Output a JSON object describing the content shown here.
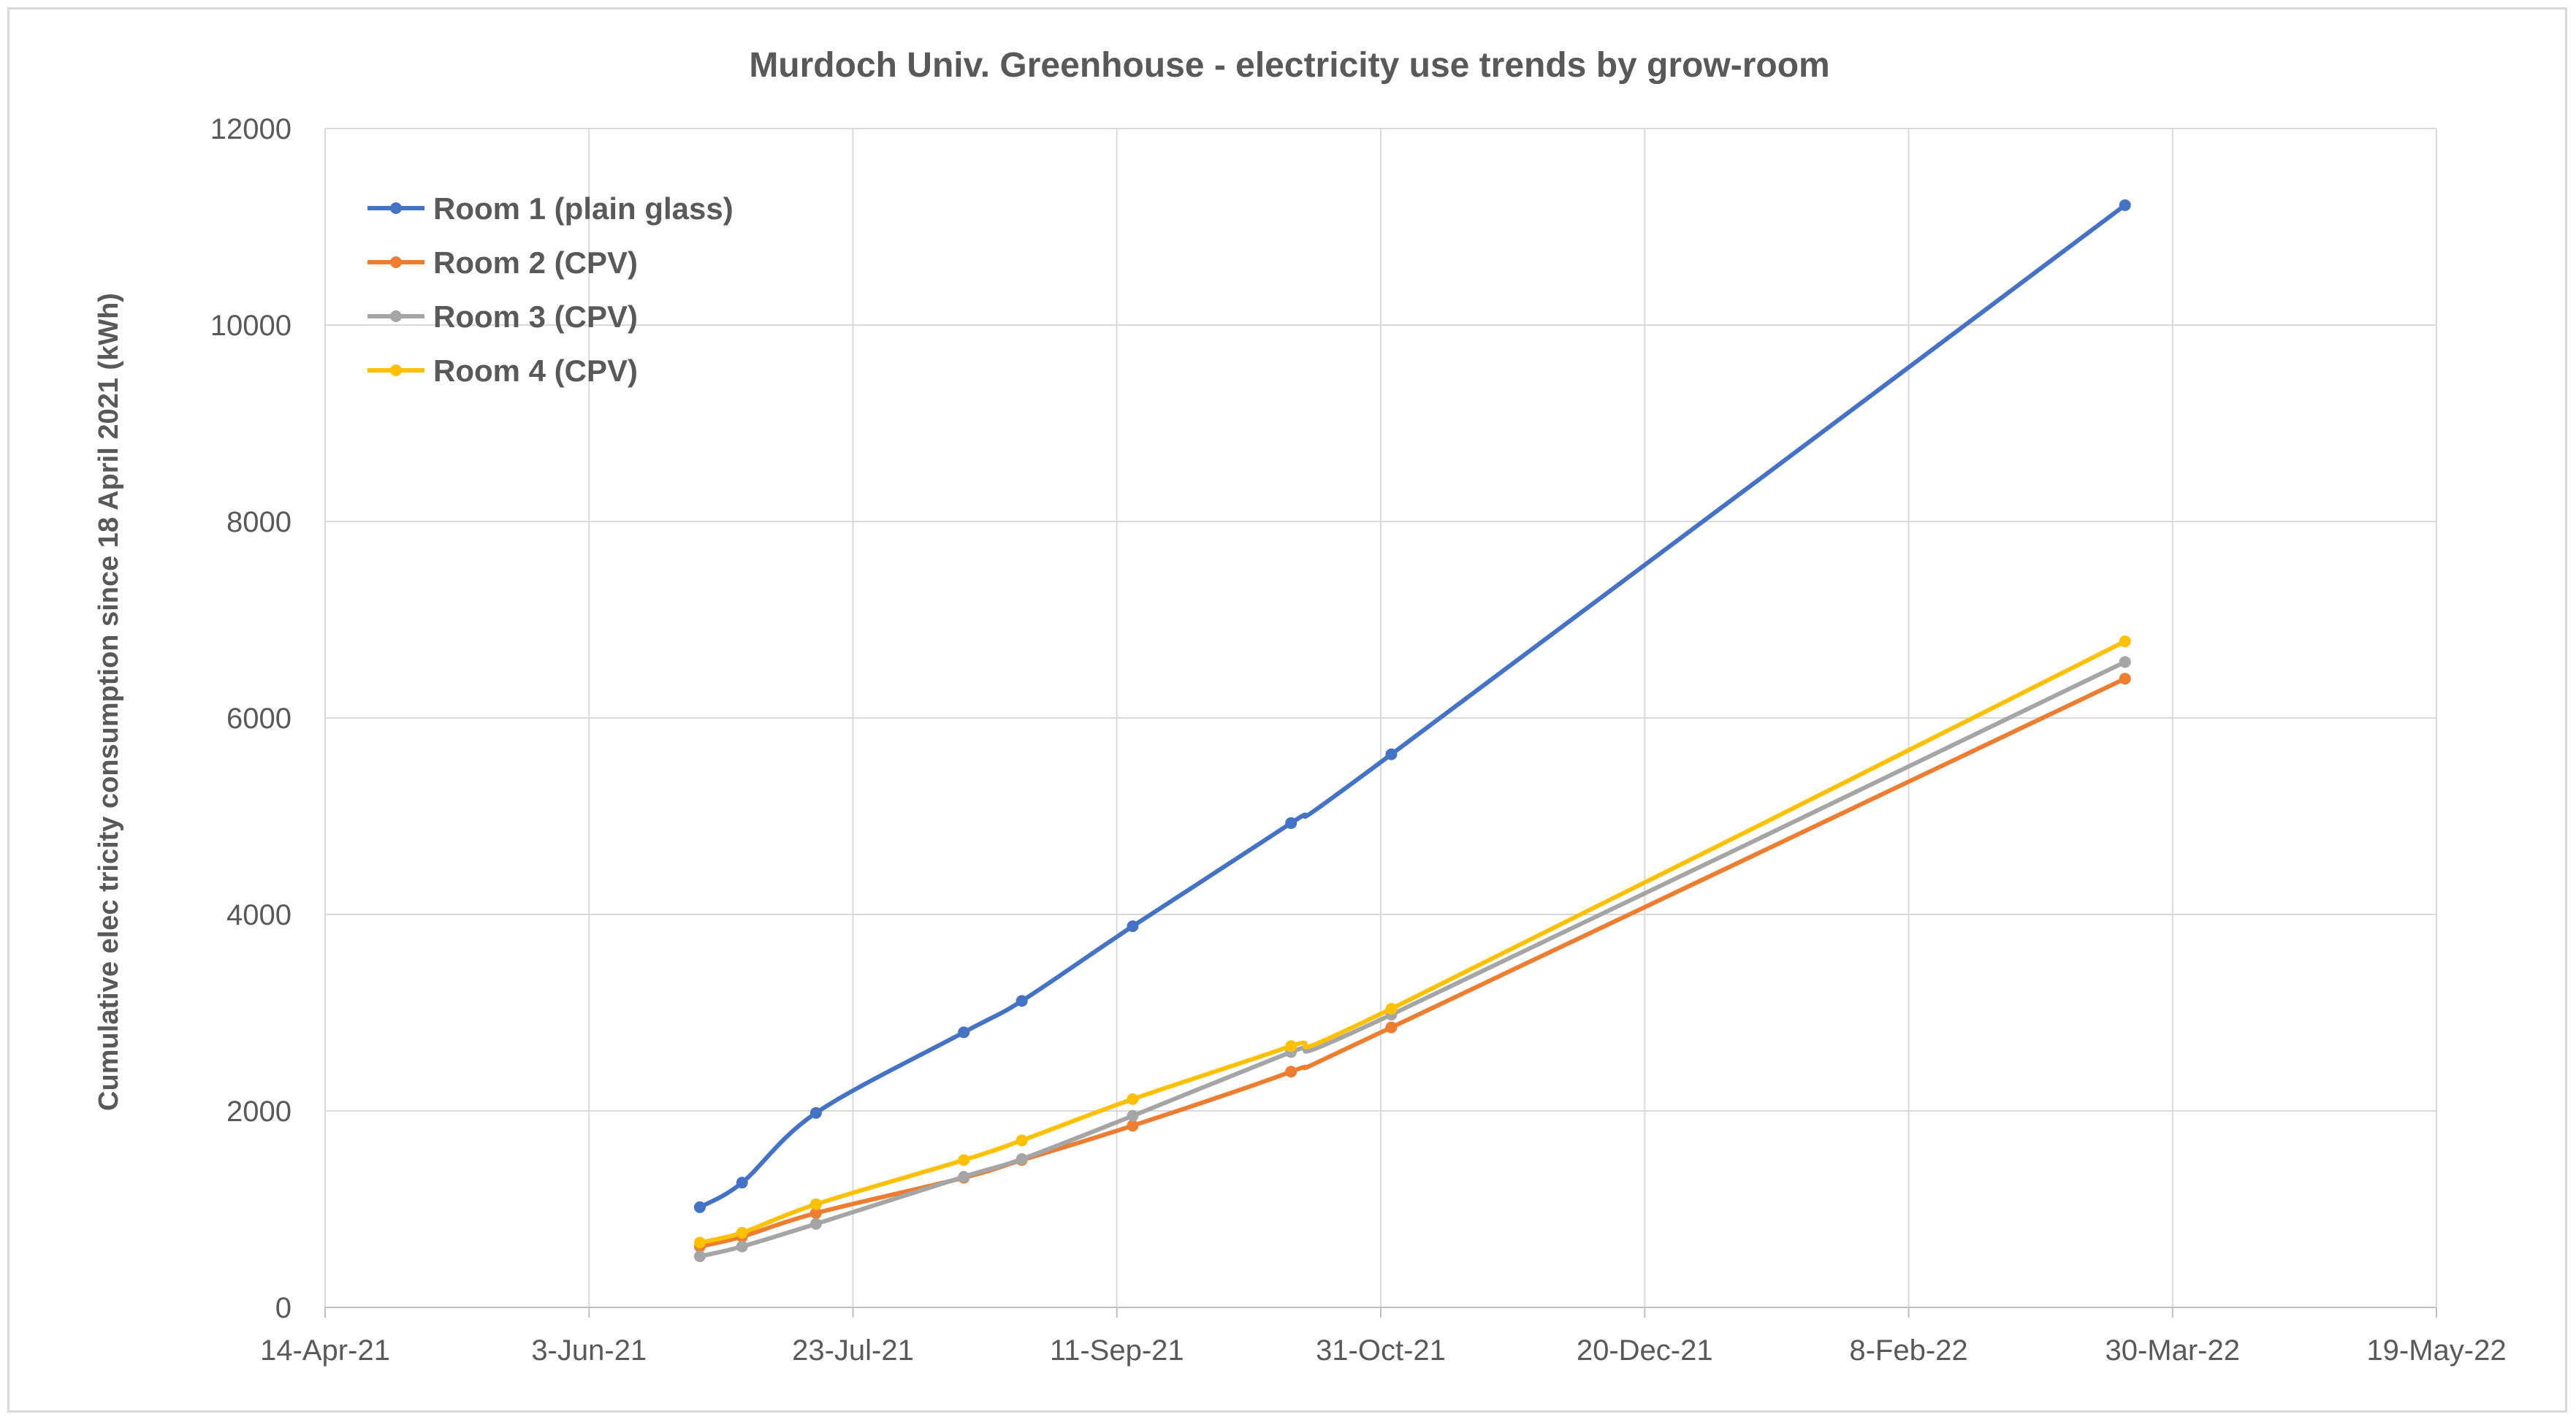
{
  "chart_data": {
    "type": "line",
    "title": "Murdoch Univ. Greenhouse - electricity use trends by grow-room",
    "xlabel": "",
    "ylabel": "Cumulative elec tricity consumption since 18 April 2021 (kWh)",
    "x_type": "date",
    "xlim": [
      "2021-04-14",
      "2022-05-19"
    ],
    "ylim": [
      0,
      12000
    ],
    "x_ticks": [
      "2021-04-14",
      "2021-06-03",
      "2021-07-23",
      "2021-09-11",
      "2021-10-31",
      "2021-12-20",
      "2022-02-08",
      "2022-03-30",
      "2022-05-19"
    ],
    "x_tick_labels": [
      "14-Apr-21",
      "3-Jun-21",
      "23-Jul-21",
      "11-Sep-21",
      "31-Oct-21",
      "20-Dec-21",
      "8-Feb-22",
      "30-Mar-22",
      "19-May-22"
    ],
    "y_ticks": [
      0,
      2000,
      4000,
      6000,
      8000,
      10000,
      12000
    ],
    "y_tick_labels": [
      "0",
      "2000",
      "4000",
      "6000",
      "8000",
      "10000",
      "12000"
    ],
    "grid": true,
    "legend_position": "top-left",
    "series": [
      {
        "name": "Room 1 (plain glass)",
        "color": "#4472c4",
        "points": [
          {
            "x": "2021-06-24",
            "y": 1020
          },
          {
            "x": "2021-07-02",
            "y": 1270
          },
          {
            "x": "2021-07-16",
            "y": 1980
          },
          {
            "x": "2021-08-13",
            "y": 2800
          },
          {
            "x": "2021-08-24",
            "y": 3120
          },
          {
            "x": "2021-09-14",
            "y": 3880
          },
          {
            "x": "2021-10-14",
            "y": 4930
          },
          {
            "x": "2021-11-02",
            "y": 5630
          },
          {
            "x": "2022-03-21",
            "y": 11220
          }
        ]
      },
      {
        "name": "Room 2 (CPV)",
        "color": "#ed7d31",
        "points": [
          {
            "x": "2021-06-24",
            "y": 620
          },
          {
            "x": "2021-07-02",
            "y": 720
          },
          {
            "x": "2021-07-16",
            "y": 960
          },
          {
            "x": "2021-08-13",
            "y": 1320
          },
          {
            "x": "2021-08-24",
            "y": 1500
          },
          {
            "x": "2021-09-14",
            "y": 1850
          },
          {
            "x": "2021-10-14",
            "y": 2400
          },
          {
            "x": "2021-11-02",
            "y": 2850
          },
          {
            "x": "2022-03-21",
            "y": 6400
          }
        ]
      },
      {
        "name": "Room 3 (CPV)",
        "color": "#a5a5a5",
        "points": [
          {
            "x": "2021-06-24",
            "y": 520
          },
          {
            "x": "2021-07-02",
            "y": 620
          },
          {
            "x": "2021-07-16",
            "y": 850
          },
          {
            "x": "2021-08-13",
            "y": 1330
          },
          {
            "x": "2021-08-24",
            "y": 1510
          },
          {
            "x": "2021-09-14",
            "y": 1950
          },
          {
            "x": "2021-10-14",
            "y": 2600
          },
          {
            "x": "2021-11-02",
            "y": 2980
          },
          {
            "x": "2022-03-21",
            "y": 6570
          }
        ]
      },
      {
        "name": "Room 4 (CPV)",
        "color": "#ffc000",
        "points": [
          {
            "x": "2021-06-24",
            "y": 660
          },
          {
            "x": "2021-07-02",
            "y": 760
          },
          {
            "x": "2021-07-16",
            "y": 1050
          },
          {
            "x": "2021-08-13",
            "y": 1500
          },
          {
            "x": "2021-08-24",
            "y": 1700
          },
          {
            "x": "2021-09-14",
            "y": 2120
          },
          {
            "x": "2021-10-14",
            "y": 2660
          },
          {
            "x": "2021-11-02",
            "y": 3040
          },
          {
            "x": "2022-03-21",
            "y": 6780
          }
        ]
      }
    ]
  }
}
